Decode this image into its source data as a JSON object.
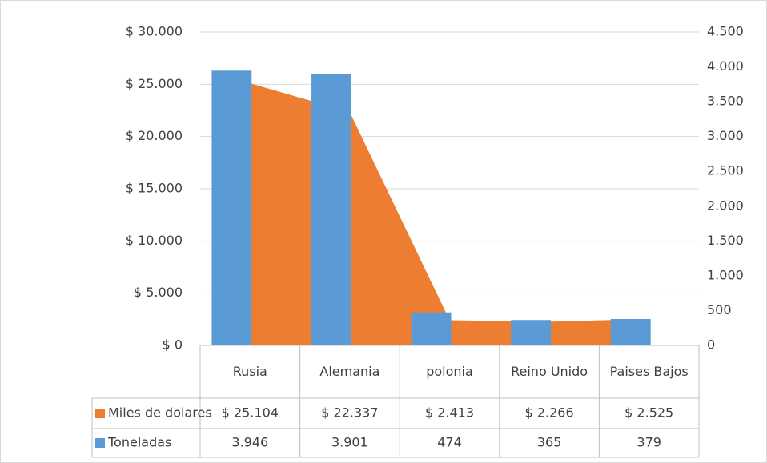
{
  "chart_data": {
    "type": "bar-area",
    "categories": [
      "Rusia",
      "Alemania",
      "polonia",
      "Reino Unido",
      "Paises Bajos"
    ],
    "series": [
      {
        "name": "Miles de dolares",
        "type": "area",
        "color": "#ed7d31",
        "axis": "y",
        "values": [
          25104,
          22337,
          2413,
          2266,
          2525
        ],
        "value_labels": [
          "$ 25.104",
          "$ 22.337",
          "$ 2.413",
          "$ 2.266",
          "$ 2.525"
        ]
      },
      {
        "name": "Toneladas",
        "type": "bar",
        "color": "#5b9bd5",
        "axis": "y2",
        "values": [
          3946,
          3901,
          474,
          365,
          379
        ],
        "value_labels": [
          "3.946",
          "3.901",
          "474",
          "365",
          "379"
        ]
      }
    ],
    "ylim": [
      0,
      30000
    ],
    "yticks": [
      {
        "value": 0,
        "label": "$ 0"
      },
      {
        "value": 5000,
        "label": "$ 5.000"
      },
      {
        "value": 10000,
        "label": "$ 10.000"
      },
      {
        "value": 15000,
        "label": "$ 15.000"
      },
      {
        "value": 20000,
        "label": "$ 20.000"
      },
      {
        "value": 25000,
        "label": "$ 25.000"
      },
      {
        "value": 30000,
        "label": "$ 30.000"
      }
    ],
    "y2lim": [
      0,
      4500
    ],
    "y2ticks": [
      0,
      500,
      {
        "value": 1000,
        "label": "1.000"
      },
      {
        "value": 1500,
        "label": "1.500"
      },
      {
        "value": 2000,
        "label": "2.000"
      },
      {
        "value": 2500,
        "label": "2.500"
      },
      {
        "value": 3000,
        "label": "3.000"
      },
      {
        "value": 3500,
        "label": "3.500"
      },
      {
        "value": 4000,
        "label": "4.000"
      },
      {
        "value": 4500,
        "label": "4.500"
      }
    ],
    "grid": true,
    "data_table": true
  }
}
